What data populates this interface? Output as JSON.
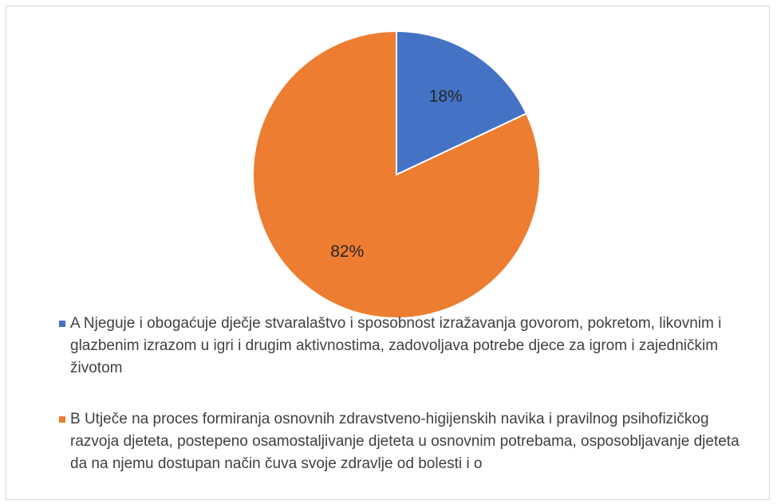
{
  "chart_data": {
    "type": "pie",
    "categories": [
      "A Njeguje i obogaćuje dječje stvaralaštvo i sposobnost izražavanja govorom, pokretom, likovnim i glazbenim izrazom u igri i drugim aktivnostima, zadovoljava potrebe djece za igrom i zajedničkim životom",
      "B Utječe na proces formiranja osnovnih zdravstveno-higijenskih navika i pravilnog psihofizičkog razvoja djeteta, postepeno osamostaljivanje djeteta u osnovnim potrebama, osposobljavanje djeteta da na njemu dostupan način čuva svoje zdravlje od bolesti i o"
    ],
    "values": [
      18,
      82
    ],
    "value_labels": [
      "18%",
      "82%"
    ],
    "colors": [
      "#4472c4",
      "#ed7d31"
    ],
    "legend": "bottom"
  }
}
